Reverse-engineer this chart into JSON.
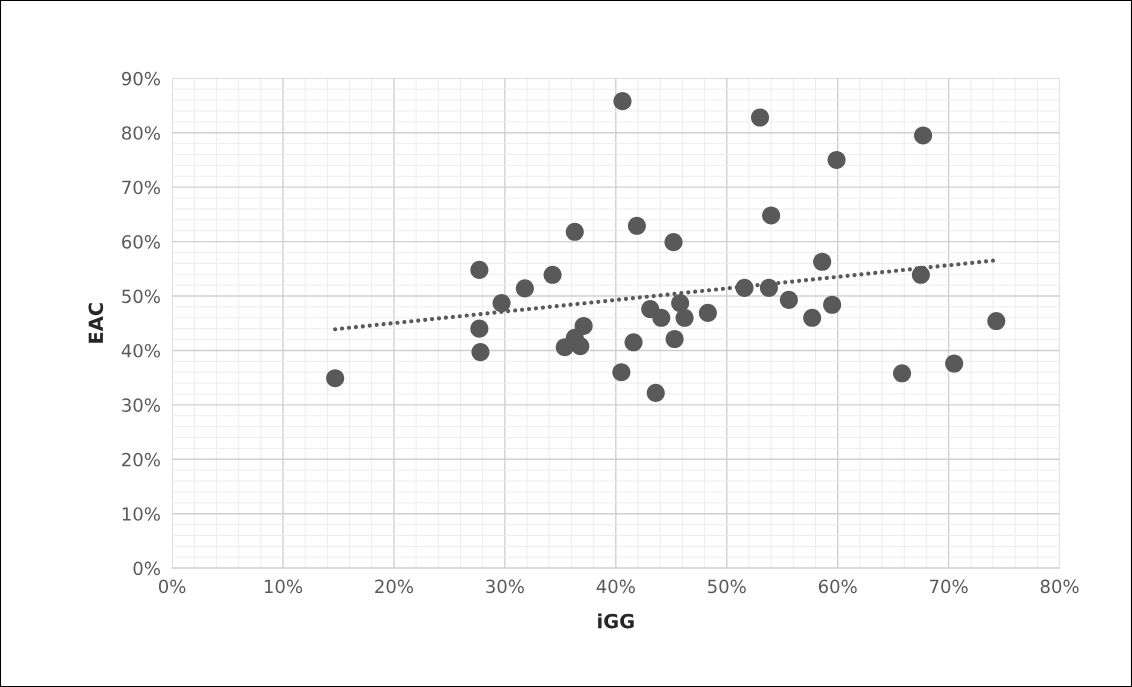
{
  "chart_data": {
    "type": "scatter",
    "xlabel": "iGG",
    "ylabel": "EAC",
    "xlim": [
      0,
      80
    ],
    "ylim": [
      0,
      90
    ],
    "xticks": [
      {
        "value": 0,
        "label": "0%"
      },
      {
        "value": 10,
        "label": "10%"
      },
      {
        "value": 20,
        "label": "20%"
      },
      {
        "value": 30,
        "label": "30%"
      },
      {
        "value": 40,
        "label": "40%"
      },
      {
        "value": 50,
        "label": "50%"
      },
      {
        "value": 60,
        "label": "60%"
      },
      {
        "value": 70,
        "label": "70%"
      },
      {
        "value": 80,
        "label": "80%"
      }
    ],
    "yticks": [
      {
        "value": 0,
        "label": "0%"
      },
      {
        "value": 10,
        "label": "10%"
      },
      {
        "value": 20,
        "label": "20%"
      },
      {
        "value": 30,
        "label": "30%"
      },
      {
        "value": 40,
        "label": "40%"
      },
      {
        "value": 50,
        "label": "50%"
      },
      {
        "value": 60,
        "label": "60%"
      },
      {
        "value": 70,
        "label": "70%"
      },
      {
        "value": 80,
        "label": "80%"
      },
      {
        "value": 90,
        "label": "90%"
      }
    ],
    "grid": true,
    "legend": false,
    "series": [
      {
        "color": "#595959",
        "marker": "circle",
        "x": [
          14.7,
          40.6,
          36.3,
          41.9,
          45.2,
          27.7,
          34.3,
          31.8,
          29.7,
          45.8,
          43.1,
          44.1,
          46.2,
          48.3,
          27.7,
          37.1,
          36.3,
          35.4,
          36.8,
          27.8,
          41.6,
          45.3,
          40.5,
          43.6,
          53.0,
          67.7,
          59.9,
          54.0,
          58.6,
          51.6,
          53.8,
          55.6,
          59.5,
          57.7,
          67.5,
          74.3,
          65.8,
          70.5
        ],
        "values": [
          34.9,
          85.8,
          61.8,
          62.9,
          59.9,
          54.8,
          53.9,
          51.4,
          48.7,
          48.7,
          47.6,
          46.0,
          46.0,
          46.9,
          44.0,
          44.5,
          42.3,
          40.6,
          40.8,
          39.7,
          41.5,
          42.1,
          36.0,
          32.2,
          82.8,
          79.5,
          75.0,
          64.8,
          56.3,
          51.5,
          51.5,
          49.3,
          48.4,
          46.0,
          53.9,
          45.4,
          35.8,
          37.6
        ]
      },
      {
        "type": "line",
        "color": "#595959",
        "line_style": "dotted",
        "marker": "none",
        "x": [
          14.7,
          74.0
        ],
        "values": [
          43.9,
          56.5
        ]
      }
    ]
  }
}
